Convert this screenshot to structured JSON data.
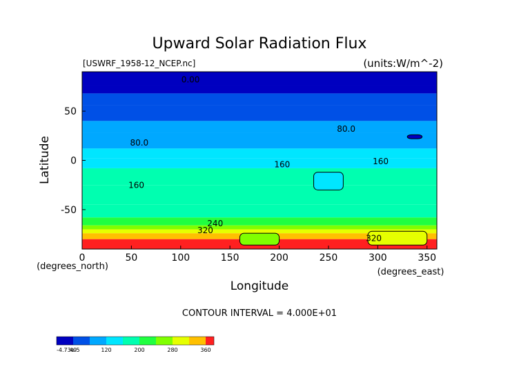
{
  "chart_data": {
    "type": "heatmap",
    "title": "Upward Solar Radiation Flux",
    "file_label": "[USWRF_1958-12_NCEP.nc]",
    "units_label": "(units:W/m^-2)",
    "xlabel": "Longitude",
    "ylabel": "Latitude",
    "x_unit_label": "(degrees_east)",
    "y_unit_label": "(degrees_north)",
    "xlim": [
      0,
      360
    ],
    "ylim": [
      -90,
      90
    ],
    "x_ticks": [
      0,
      50,
      100,
      150,
      200,
      250,
      300,
      350
    ],
    "y_ticks": [
      50,
      0,
      -50
    ],
    "contour_interval_text": "CONTOUR INTERVAL = 4.000E+01",
    "contour_labels": [
      {
        "text": "0.00",
        "lon": 110,
        "lat": 79
      },
      {
        "text": "80.0",
        "lon": 58,
        "lat": 15
      },
      {
        "text": "80.0",
        "lon": 268,
        "lat": 29
      },
      {
        "text": "160",
        "lon": 203,
        "lat": -7
      },
      {
        "text": "160",
        "lon": 303,
        "lat": -4
      },
      {
        "text": "160",
        "lon": 55,
        "lat": -28
      },
      {
        "text": "240",
        "lon": 135,
        "lat": -67
      },
      {
        "text": "320",
        "lon": 125,
        "lat": -74
      },
      {
        "text": "320",
        "lon": 296,
        "lat": -82
      }
    ],
    "latitude_bands": [
      {
        "lat_min": 76,
        "lat_max": 90,
        "value": 5
      },
      {
        "lat_min": 68,
        "lat_max": 76,
        "value": 25
      },
      {
        "lat_min": 56,
        "lat_max": 68,
        "value": 40
      },
      {
        "lat_min": 40,
        "lat_max": 56,
        "value": 65
      },
      {
        "lat_min": 28,
        "lat_max": 40,
        "value": 90
      },
      {
        "lat_min": 12,
        "lat_max": 28,
        "value": 110
      },
      {
        "lat_min": 2,
        "lat_max": 12,
        "value": 130
      },
      {
        "lat_min": -8,
        "lat_max": 2,
        "value": 145
      },
      {
        "lat_min": -25,
        "lat_max": -8,
        "value": 160
      },
      {
        "lat_min": -45,
        "lat_max": -25,
        "value": 180
      },
      {
        "lat_min": -58,
        "lat_max": -45,
        "value": 195
      },
      {
        "lat_min": -66,
        "lat_max": -58,
        "value": 220
      },
      {
        "lat_min": -70,
        "lat_max": -66,
        "value": 250
      },
      {
        "lat_min": -74,
        "lat_max": -70,
        "value": 280
      },
      {
        "lat_min": -80,
        "lat_max": -74,
        "value": 330
      },
      {
        "lat_min": -90,
        "lat_max": -80,
        "value": 365
      }
    ],
    "regional_patches": [
      {
        "lon_min": 160,
        "lon_max": 200,
        "lat_min": -86,
        "lat_max": -74,
        "value": 250
      },
      {
        "lon_min": 290,
        "lon_max": 350,
        "lat_min": -86,
        "lat_max": -72,
        "value": 300
      },
      {
        "lon_min": 330,
        "lon_max": 345,
        "lat_min": 22,
        "lat_max": 26,
        "value": 30
      },
      {
        "lon_min": 235,
        "lon_max": 265,
        "lat_min": -30,
        "lat_max": -12,
        "value": 145
      }
    ],
    "colorbar": {
      "tick_labels": [
        "-4.73e-5",
        "40",
        "120",
        "200",
        "280",
        "360"
      ],
      "levels": [
        0,
        40,
        80,
        120,
        160,
        200,
        240,
        280,
        320,
        360,
        380
      ],
      "colors": [
        "#0000c0",
        "#0050e6",
        "#00a8ff",
        "#00e6ff",
        "#00ffb0",
        "#20ff40",
        "#80ff00",
        "#e6ff00",
        "#ffc000",
        "#ff2020",
        "#ffa0a0"
      ]
    }
  }
}
